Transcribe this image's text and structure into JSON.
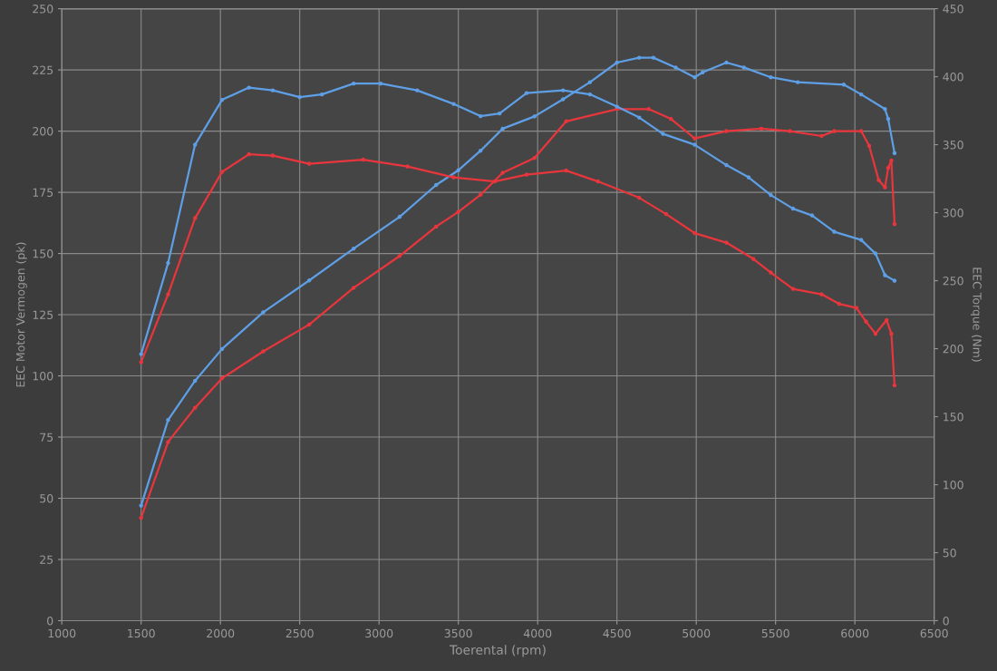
{
  "chart_data": {
    "type": "line",
    "xlabel": "Toerental (rpm)",
    "ylabel": "EEC Motor Vermogen (pk)",
    "y2label": "EEC Torque (Nm)",
    "xlim": [
      1000,
      6500
    ],
    "xticks": [
      1000,
      1500,
      2000,
      2500,
      3000,
      3500,
      4000,
      4500,
      5000,
      5500,
      6000,
      6500
    ],
    "ylim": [
      0,
      250
    ],
    "yticks": [
      0,
      25,
      50,
      75,
      100,
      125,
      150,
      175,
      200,
      225,
      250
    ],
    "y2lim": [
      0,
      450
    ],
    "y2ticks": [
      0,
      50,
      100,
      150,
      200,
      250,
      300,
      350,
      400,
      450
    ],
    "grid": true,
    "marker": "circle",
    "line_style": "solid",
    "series": [
      {
        "color": "#5e9fe6",
        "x": [
          1500,
          1670,
          1840,
          2010,
          2270,
          2560,
          2840,
          3130,
          3360,
          3500,
          3640,
          3780,
          3980,
          4160,
          4330,
          4500,
          4640,
          4730,
          4870,
          4990,
          5040,
          5190,
          5300,
          5470,
          5640,
          5930,
          6040,
          6190,
          6210,
          6250
        ],
        "values": [
          47,
          82,
          98,
          111,
          126,
          139,
          152,
          165,
          178,
          184,
          192,
          201,
          206,
          213,
          220,
          228,
          230,
          230,
          226,
          222,
          224,
          228,
          226,
          222,
          220,
          219,
          215,
          209,
          205,
          191
        ]
      },
      {
        "color": "#e8363c",
        "x": [
          1500,
          1670,
          1840,
          2010,
          2270,
          2560,
          2840,
          3130,
          3360,
          3500,
          3640,
          3780,
          3980,
          4180,
          4500,
          4700,
          4840,
          4990,
          5190,
          5410,
          5590,
          5790,
          5870,
          6040,
          6090,
          6150,
          6190,
          6210,
          6230,
          6250
        ],
        "values": [
          42,
          73,
          87,
          99,
          110,
          121,
          136,
          149,
          161,
          167,
          174,
          183,
          189,
          204,
          209,
          209,
          205,
          197,
          200,
          201,
          200,
          198,
          200,
          200,
          194,
          180,
          177,
          185,
          188,
          162
        ]
      },
      {
        "color": "#5e9fe6",
        "axis": "y2",
        "x": [
          1500,
          1670,
          1840,
          2010,
          2180,
          2330,
          2500,
          2640,
          2840,
          3010,
          3240,
          3470,
          3640,
          3760,
          3930,
          4160,
          4330,
          4500,
          4640,
          4790,
          4990,
          5190,
          5330,
          5470,
          5610,
          5730,
          5870,
          6040,
          6130,
          6190,
          6250
        ],
        "values": [
          196,
          263,
          350,
          383,
          392,
          390,
          385,
          387,
          395,
          395,
          390,
          380,
          371,
          373,
          388,
          390,
          387,
          378,
          370,
          358,
          350,
          335,
          326,
          313,
          303,
          298,
          286,
          280,
          270,
          254,
          250
        ]
      },
      {
        "color": "#e8363c",
        "axis": "y2",
        "x": [
          1500,
          1670,
          1840,
          2010,
          2180,
          2330,
          2560,
          2900,
          3180,
          3470,
          3730,
          3930,
          4180,
          4380,
          4640,
          4810,
          4990,
          5190,
          5360,
          5470,
          5610,
          5790,
          5900,
          6010,
          6070,
          6130,
          6200,
          6230,
          6250
        ],
        "values": [
          190,
          240,
          296,
          330,
          343,
          342,
          336,
          339,
          334,
          326,
          323,
          328,
          331,
          323,
          311,
          299,
          285,
          278,
          266,
          256,
          244,
          240,
          233,
          230,
          220,
          211,
          221,
          211,
          173
        ]
      }
    ]
  }
}
